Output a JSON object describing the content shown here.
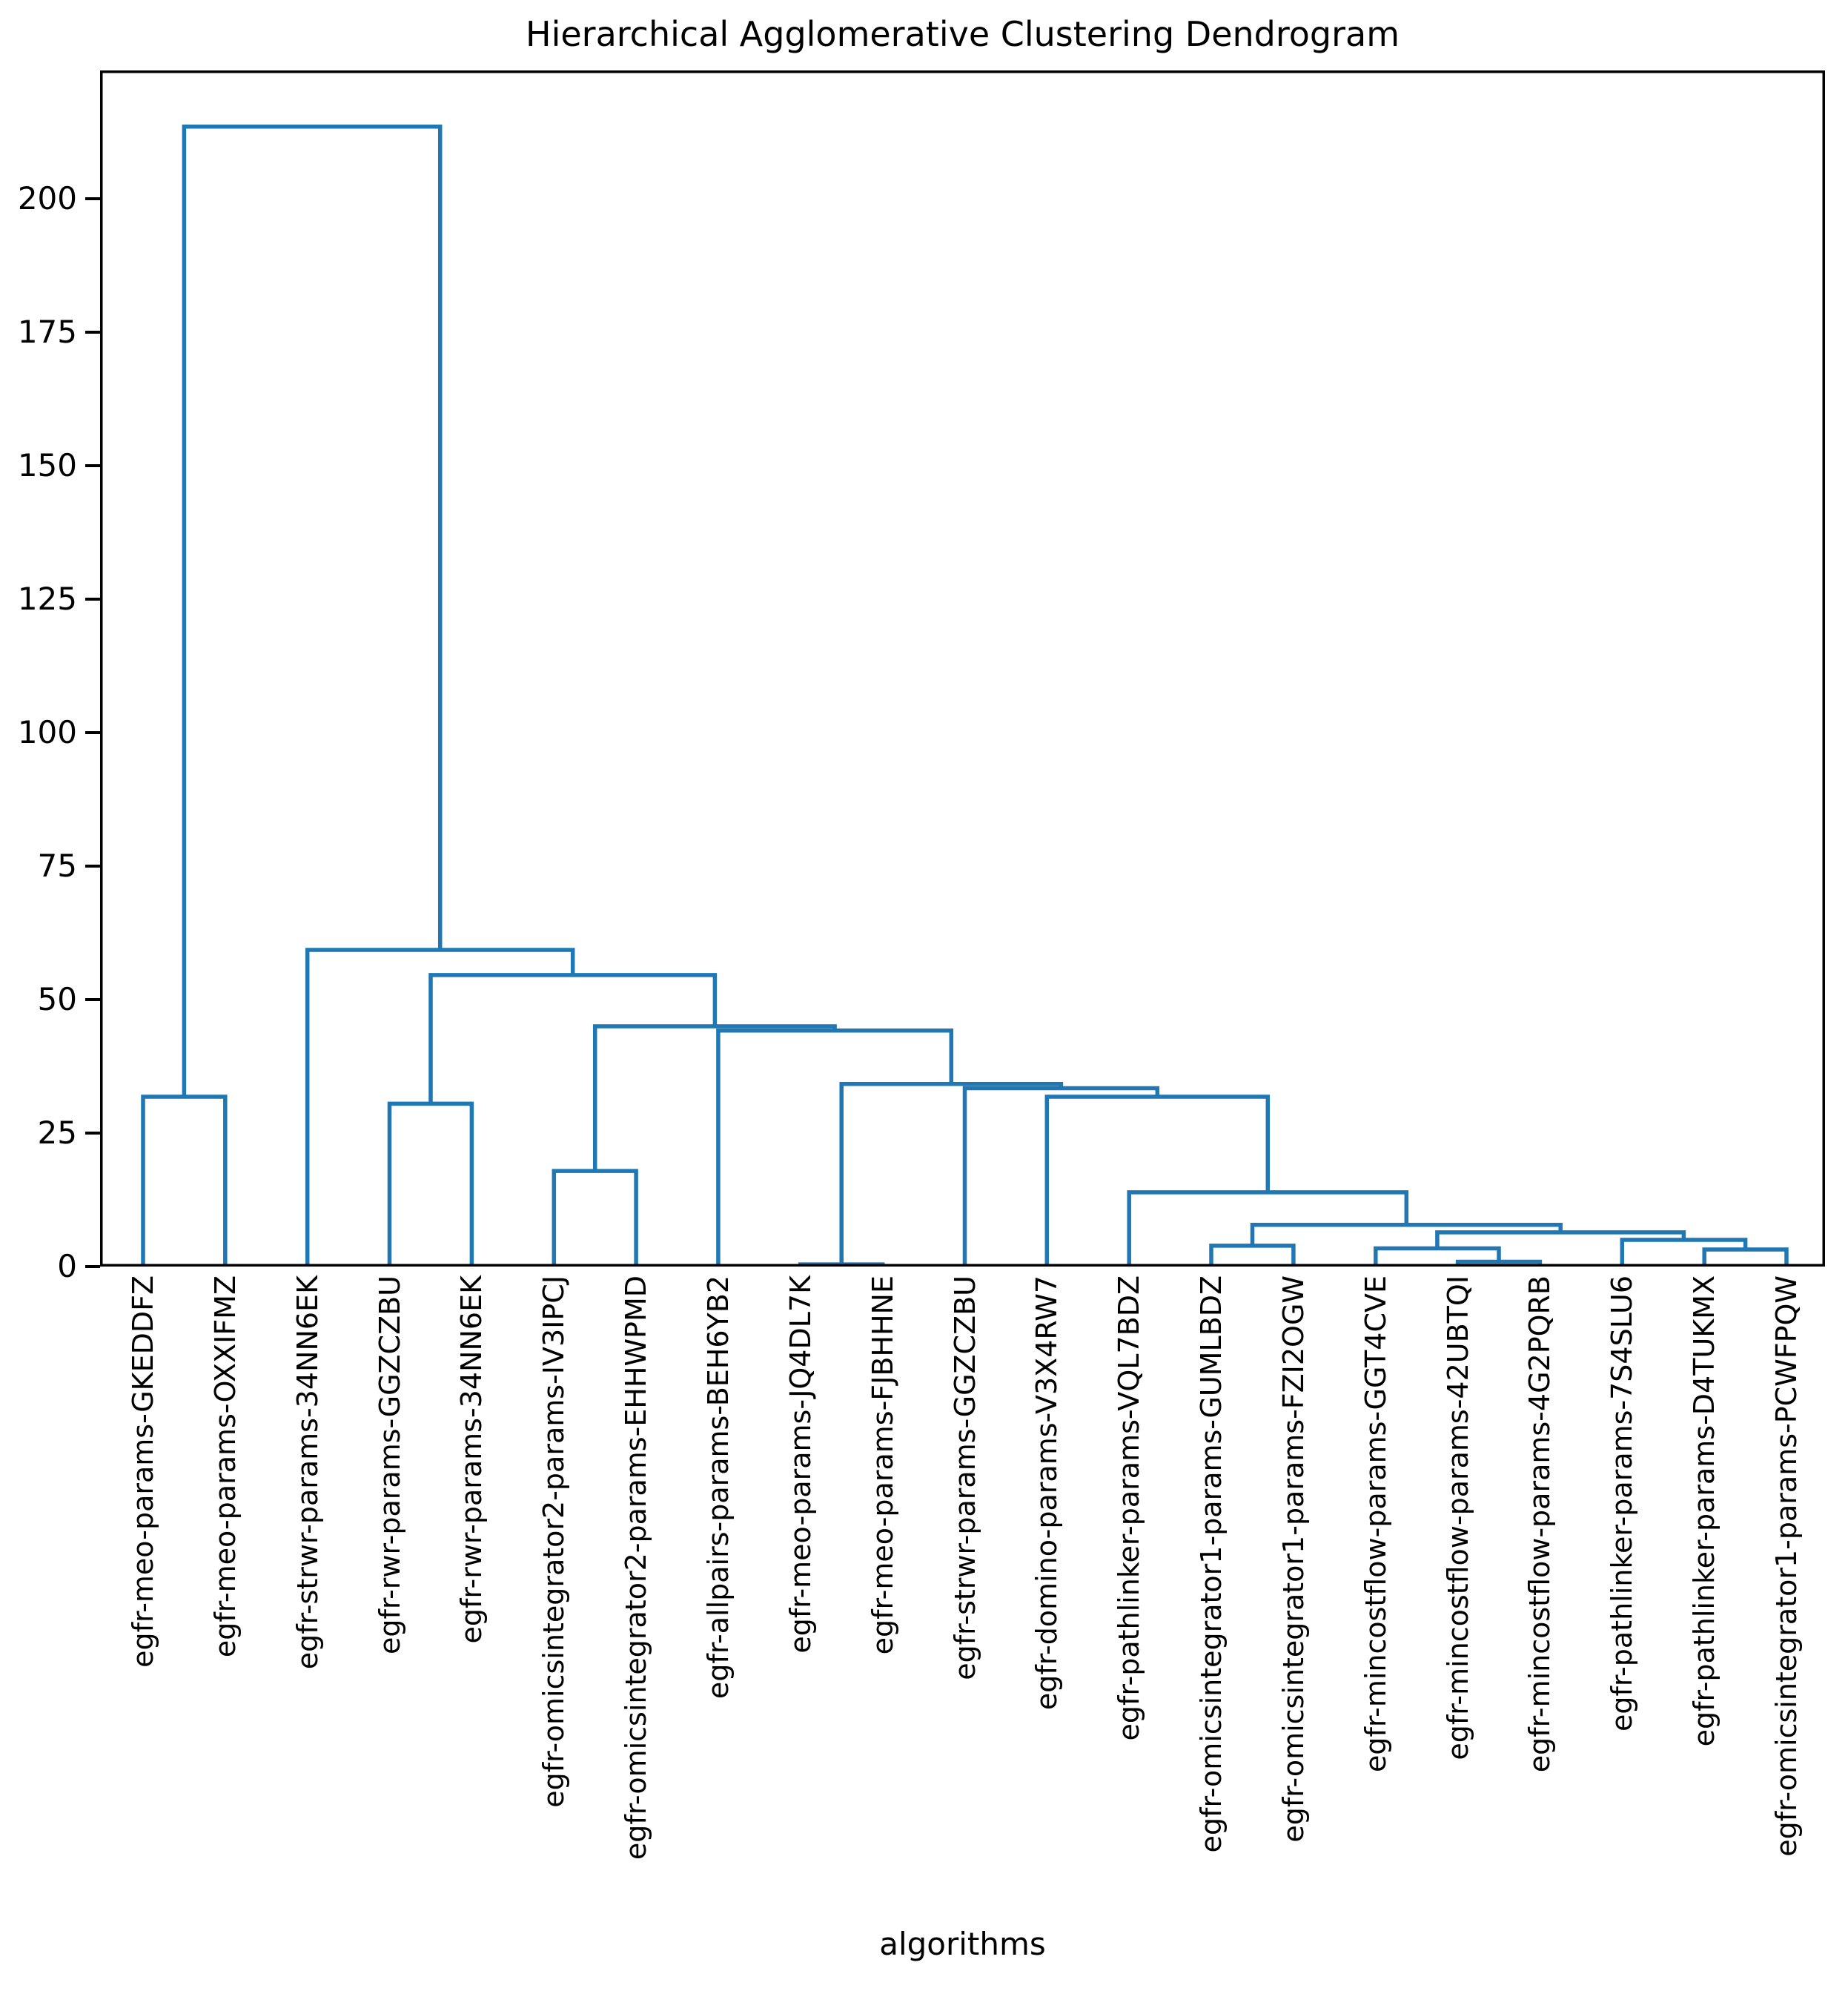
{
  "chart_data": {
    "type": "dendrogram",
    "title": "Hierarchical Agglomerative Clustering Dendrogram",
    "xlabel": "algorithms",
    "ylabel": "",
    "ylim": [
      0,
      224
    ],
    "yticks": [
      0,
      25,
      50,
      75,
      100,
      125,
      150,
      175,
      200
    ],
    "grid": false,
    "line_color": "#1f77b4",
    "axis_color": "#000000",
    "leaves": [
      "egfr-meo-params-GKEDDFZ",
      "egfr-meo-params-OXXIFMZ",
      "egfr-strwr-params-34NN6EK",
      "egfr-rwr-params-GGZCZBU",
      "egfr-rwr-params-34NN6EK",
      "egfr-omicsintegrator2-params-IV3IPCJ",
      "egfr-omicsintegrator2-params-EHHWPMD",
      "egfr-allpairs-params-BEH6YB2",
      "egfr-meo-params-JQ4DL7K",
      "egfr-meo-params-FJBHHNE",
      "egfr-strwr-params-GGZCZBU",
      "egfr-domino-params-V3X4RW7",
      "egfr-pathlinker-params-VQL7BDZ",
      "egfr-omicsintegrator1-params-GUMLBDZ",
      "egfr-omicsintegrator1-params-FZI2OGW",
      "egfr-mincostflow-params-GGT4CVE",
      "egfr-mincostflow-params-42UBTQI",
      "egfr-mincostflow-params-4G2PQRB",
      "egfr-pathlinker-params-7S4SLU6",
      "egfr-pathlinker-params-D4TUKMX",
      "egfr-omicsintegrator1-params-PCWFPQW"
    ],
    "merges": [
      {
        "left": "L8",
        "right": "L9",
        "height": 0.4
      },
      {
        "left": "L16",
        "right": "L17",
        "height": 0.9
      },
      {
        "left": "L19",
        "right": "L20",
        "height": 3.2
      },
      {
        "left": "L15",
        "right": "M1",
        "height": 3.4
      },
      {
        "left": "L13",
        "right": "L14",
        "height": 3.9
      },
      {
        "left": "L18",
        "right": "M2",
        "height": 5.0
      },
      {
        "left": "M3",
        "right": "M5",
        "height": 6.4
      },
      {
        "left": "M4",
        "right": "M6",
        "height": 7.8
      },
      {
        "left": "L12",
        "right": "M7",
        "height": 13.9
      },
      {
        "left": "L5",
        "right": "L6",
        "height": 17.9
      },
      {
        "left": "L3",
        "right": "L4",
        "height": 30.5
      },
      {
        "left": "L11",
        "right": "M8",
        "height": 31.8
      },
      {
        "left": "L0",
        "right": "L1",
        "height": 31.8
      },
      {
        "left": "L10",
        "right": "M11",
        "height": 33.4
      },
      {
        "left": "M0",
        "right": "M13",
        "height": 34.2
      },
      {
        "left": "L7",
        "right": "M14",
        "height": 44.2
      },
      {
        "left": "M9",
        "right": "M15",
        "height": 45.0
      },
      {
        "left": "M10",
        "right": "M16",
        "height": 54.6
      },
      {
        "left": "L2",
        "right": "M17",
        "height": 59.3
      },
      {
        "left": "M12",
        "right": "M18",
        "height": 213.5
      }
    ]
  }
}
